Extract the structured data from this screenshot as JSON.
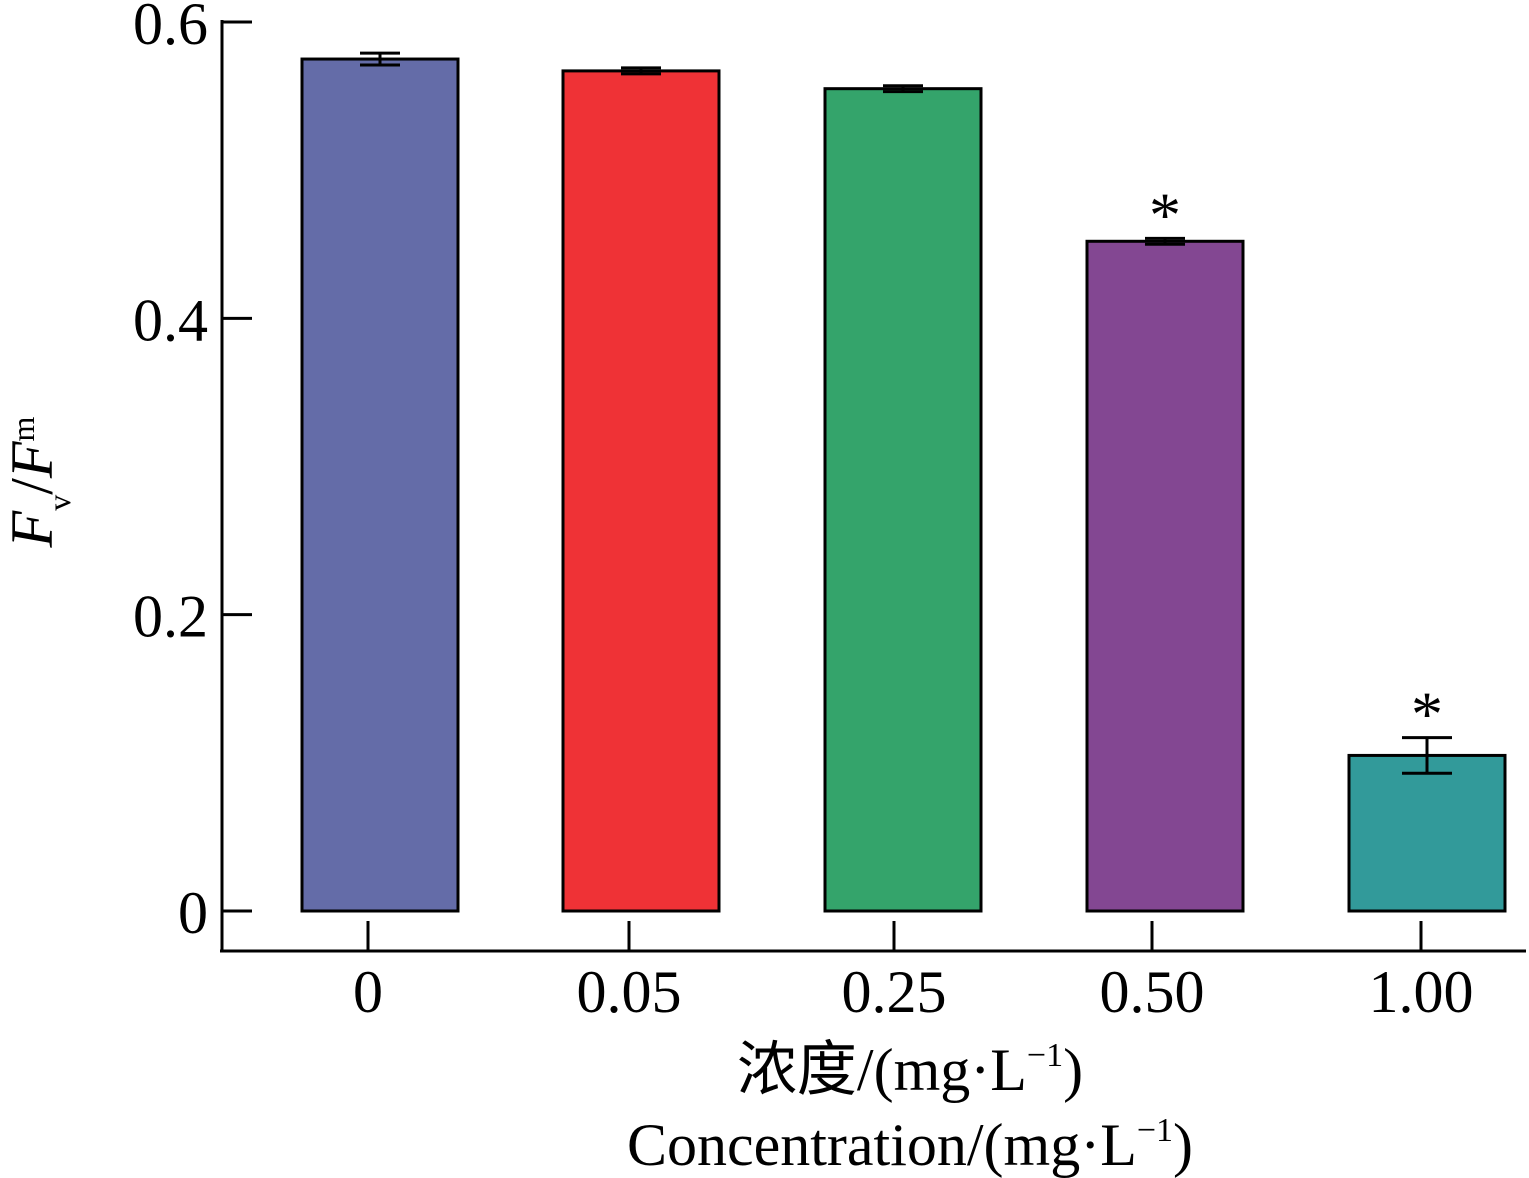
{
  "chart_data": {
    "type": "bar",
    "categories": [
      "0",
      "0.05",
      "0.25",
      "0.50",
      "1.00"
    ],
    "values": [
      0.575,
      0.567,
      0.555,
      0.452,
      0.105
    ],
    "errors": [
      0.004,
      0.002,
      0.002,
      0.002,
      0.012
    ],
    "significance": [
      "",
      "",
      "",
      "*",
      "*"
    ],
    "colors": [
      "#646ca8",
      "#ef3236",
      "#34a46b",
      "#834792",
      "#329a9a"
    ],
    "ylabel": {
      "main": "F",
      "sub_v": "v",
      "slash": "/",
      "main2": "F",
      "sub_m": "m"
    },
    "xlabel_cn": "浓度/(mg·L",
    "xlabel_en": "Concentration/(mg·L",
    "xlabel_sup": "−1",
    "xlabel_close": ")",
    "yticks": [
      0,
      0.2,
      0.4,
      0.6
    ],
    "ytick_labels": [
      "0",
      "0.2",
      "0.4",
      "0.6"
    ],
    "ylim": [
      0,
      0.6
    ],
    "grid": false
  }
}
